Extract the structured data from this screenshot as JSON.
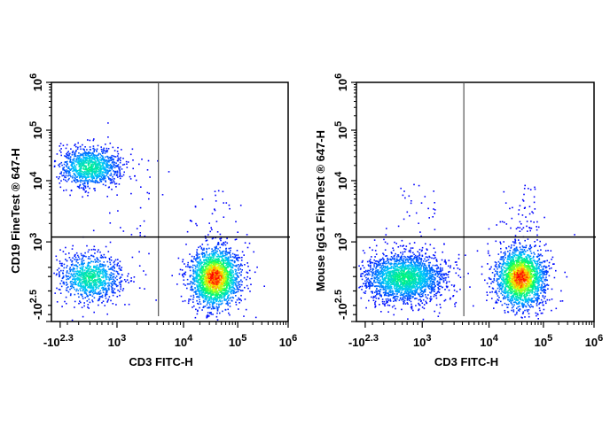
{
  "chart_data": [
    {
      "type": "scatter",
      "subtype": "flow-cytometry-density-dot-plot",
      "xlabel": "CD3 FITC-H",
      "ylabel": "CD19 FineTest ® 647-H",
      "x_scale": "biexponential",
      "y_scale": "biexponential",
      "xlim": [
        -200,
        1000000
      ],
      "ylim": [
        -316,
        1000000
      ],
      "x_ticks": [
        {
          "base": "-10",
          "exp": "2.3",
          "value": -200
        },
        {
          "base": "10",
          "exp": "3",
          "value": 1000
        },
        {
          "base": "10",
          "exp": "4",
          "value": 10000
        },
        {
          "base": "10",
          "exp": "5",
          "value": 100000
        },
        {
          "base": "10",
          "exp": "6",
          "value": 1000000
        }
      ],
      "y_ticks": [
        {
          "base": "-10",
          "exp": "2.5",
          "value": -316
        },
        {
          "base": "10",
          "exp": "3",
          "value": 1000
        },
        {
          "base": "10",
          "exp": "4",
          "value": 10000
        },
        {
          "base": "10",
          "exp": "5",
          "value": 100000
        },
        {
          "base": "10",
          "exp": "6",
          "value": 1000000
        }
      ],
      "quadrant_gate": {
        "x": 4200,
        "y": 1200
      },
      "populations": [
        {
          "center_x": 90,
          "center_y": 19000,
          "count": 1100
        },
        {
          "center_x": 95,
          "center_y": 95,
          "count": 1000
        },
        {
          "center_x": 37000,
          "center_y": 95,
          "count": 2200
        },
        {
          "center_x": 30000,
          "center_y": 3000,
          "count": 25,
          "sparse": true
        },
        {
          "center_x": 1500,
          "center_y": 3000,
          "count": 15,
          "sparse": true
        }
      ],
      "colormap": [
        "#0000ff",
        "#00c8ff",
        "#00ff60",
        "#ffff00",
        "#ff0000"
      ]
    },
    {
      "type": "scatter",
      "subtype": "flow-cytometry-density-dot-plot",
      "xlabel": "CD3 FITC-H",
      "ylabel": "Mouse IgG1 FineTest ® 647-H",
      "x_scale": "biexponential",
      "y_scale": "biexponential",
      "xlim": [
        -200,
        1000000
      ],
      "ylim": [
        -316,
        1000000
      ],
      "x_ticks": [
        {
          "base": "-10",
          "exp": "2.3",
          "value": -200
        },
        {
          "base": "10",
          "exp": "3",
          "value": 1000
        },
        {
          "base": "10",
          "exp": "4",
          "value": 10000
        },
        {
          "base": "10",
          "exp": "5",
          "value": 100000
        },
        {
          "base": "10",
          "exp": "6",
          "value": 1000000
        }
      ],
      "y_ticks": [
        {
          "base": "-10",
          "exp": "2.5",
          "value": -316
        },
        {
          "base": "10",
          "exp": "3",
          "value": 1000
        },
        {
          "base": "10",
          "exp": "4",
          "value": 10000
        },
        {
          "base": "10",
          "exp": "5",
          "value": 100000
        },
        {
          "base": "10",
          "exp": "6",
          "value": 1000000
        }
      ],
      "quadrant_gate": {
        "x": 4200,
        "y": 1200
      },
      "populations": [
        {
          "center_x": 220,
          "center_y": 95,
          "count": 2200
        },
        {
          "center_x": 37000,
          "center_y": 95,
          "count": 2200
        },
        {
          "center_x": 35000,
          "center_y": 3500,
          "count": 45,
          "sparse": true
        },
        {
          "center_x": 600,
          "center_y": 4000,
          "count": 25,
          "sparse": true
        }
      ],
      "colormap": [
        "#0000ff",
        "#00c8ff",
        "#00ff60",
        "#ffff00",
        "#ff0000"
      ]
    }
  ]
}
